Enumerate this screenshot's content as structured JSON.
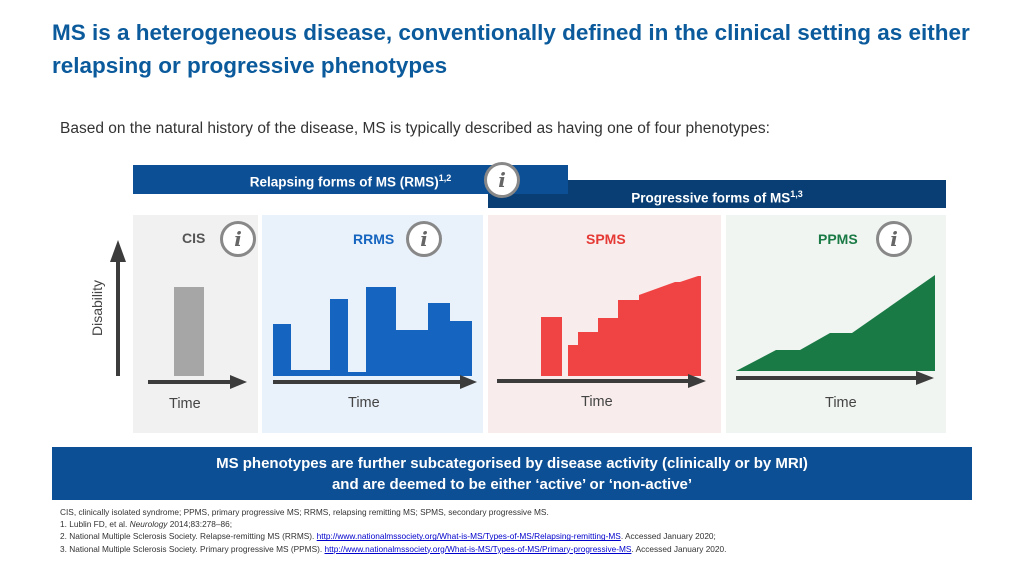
{
  "title": "MS is a heterogeneous disease, conventionally defined in the clinical setting as either relapsing or progressive phenotypes",
  "intro": "Based on the natural history of the disease, MS is typically described as having one of four phenotypes:",
  "bands": {
    "relapsing": {
      "label": "Relapsing forms of MS (RMS)",
      "sup": "1,2"
    },
    "progressive": {
      "label": "Progressive forms of MS",
      "sup": "1,3"
    }
  },
  "info_glyph": "i",
  "panels": {
    "cis": {
      "label": "CIS",
      "time": "Time",
      "color": "#a6a6a6"
    },
    "rrms": {
      "label": "RRMS",
      "time": "Time",
      "color": "#1565c0"
    },
    "spms": {
      "label": "SPMS",
      "time": "Time",
      "color": "#f04444"
    },
    "ppms": {
      "label": "PPMS",
      "time": "Time",
      "color": "#1a7a45"
    }
  },
  "y_axis_label": "Disability",
  "bottom_banner": {
    "line1": "MS phenotypes are further subcategorised by disease activity (clinically or by MRI)",
    "line2": "and are deemed to be either ‘active’ or ‘non-active’"
  },
  "footnotes": {
    "abbrev": "CIS, clinically isolated syndrome; PPMS, primary progressive MS; RRMS, relapsing remitting MS; SPMS, secondary progressive MS.",
    "ref1_a": "1. Lublin FD, et al. ",
    "ref1_journal": "Neurology",
    "ref1_b": " 2014;83:278–86;",
    "ref2_text": "2. National Multiple Sclerosis Society. Relapse-remitting MS (RRMS). ",
    "ref2_link": "http://www.nationalmssociety.org/What-is-MS/Types-of-MS/Relapsing-remitting-MS",
    "ref2_tail": ". Accessed January 2020;",
    "ref3_text": "3. National Multiple Sclerosis Society. Primary progressive MS (PPMS). ",
    "ref3_link": "http://www.nationalmssociety.org/What-is-MS/Types-of-MS/Primary-progressive-MS",
    "ref3_tail": ". Accessed January 2020."
  }
}
